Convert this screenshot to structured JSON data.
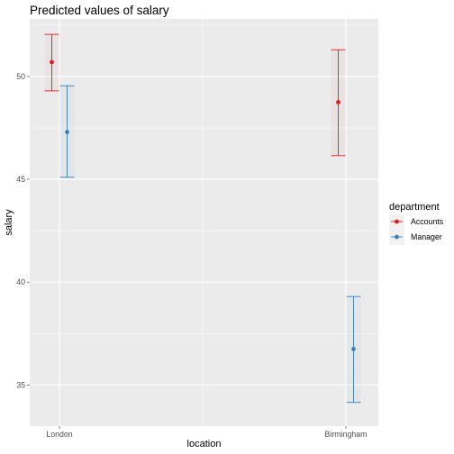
{
  "chart_data": {
    "type": "scatter",
    "title": "Predicted values of salary",
    "xlabel": "location",
    "ylabel": "salary",
    "categories": [
      "London",
      "Birmingham"
    ],
    "ylim": [
      33.0,
      52.8
    ],
    "yticks": [
      35,
      40,
      45,
      50
    ],
    "grid": true,
    "legend": {
      "title": "department",
      "position": "right"
    },
    "series": [
      {
        "name": "Accounts",
        "color": "#e41a1c",
        "values": [
          50.7,
          48.75
        ],
        "lower": [
          49.3,
          46.15
        ],
        "upper": [
          52.05,
          51.3
        ]
      },
      {
        "name": "Manager",
        "color": "#377eb8",
        "values": [
          47.3,
          36.75
        ],
        "lower": [
          45.1,
          34.15
        ],
        "upper": [
          49.55,
          39.3
        ]
      }
    ]
  }
}
